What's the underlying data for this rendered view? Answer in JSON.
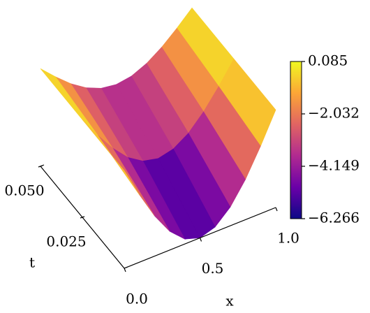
{
  "chart_data": {
    "type": "surface",
    "x": [
      0,
      0.1,
      0.2,
      0.3,
      0.4,
      0.5,
      0.6,
      0.7,
      0.8,
      0.9,
      1
    ],
    "t": [
      0,
      0.025,
      0.05
    ],
    "z": [
      [
        0.085,
        -1.88,
        -3.65,
        -5.05,
        -5.95,
        -6.266,
        -5.95,
        -5.05,
        -3.65,
        -1.88,
        0.085
      ],
      [
        0.085,
        -1.31,
        -2.56,
        -3.56,
        -4.19,
        -4.42,
        -4.19,
        -3.56,
        -2.56,
        -1.31,
        0.085
      ],
      [
        0.085,
        -0.84,
        -1.68,
        -2.34,
        -2.77,
        -2.92,
        -2.77,
        -2.34,
        -1.68,
        -0.84,
        0.085
      ]
    ],
    "xlabel": "x",
    "tlabel": "t",
    "xlim": [
      0,
      1
    ],
    "xticks": [
      {
        "value": 0,
        "label": "0.0"
      },
      0.5,
      {
        "value": 1,
        "label": "1.0"
      }
    ],
    "tlim": [
      0,
      0.05
    ],
    "tticks": [
      0.025,
      {
        "value": 0.05,
        "label": "0.050"
      }
    ],
    "colormap": "plasma",
    "clim": [
      -6.266,
      0.085
    ],
    "cticks": [
      {
        "value": 0.085,
        "label": "0.085"
      },
      {
        "value": -2.032,
        "label": "−2.032"
      },
      {
        "value": -4.149,
        "label": "−4.149"
      },
      {
        "value": -6.266,
        "label": "−6.266"
      }
    ]
  }
}
